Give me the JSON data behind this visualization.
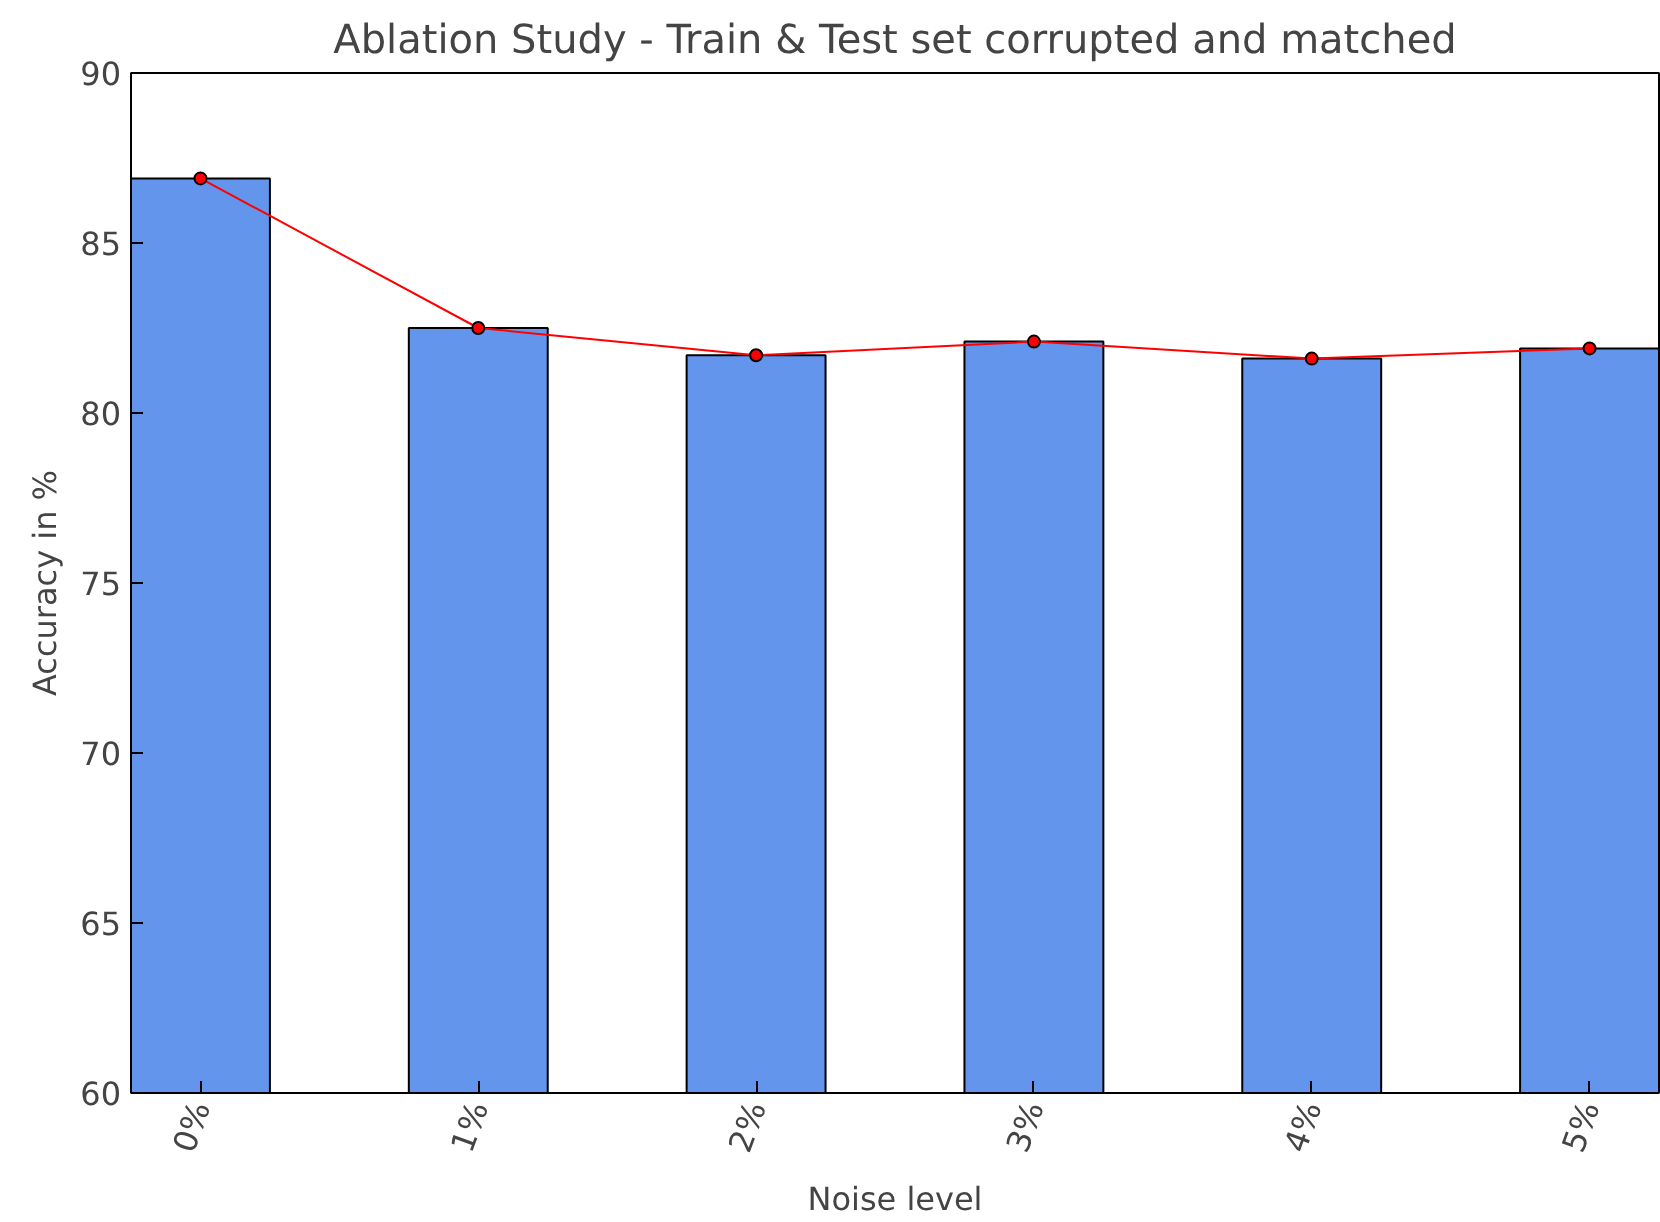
{
  "chart_data": {
    "type": "bar",
    "title": "Ablation Study - Train & Test set corrupted and matched",
    "xlabel": "Noise level",
    "ylabel": "Accuracy in %",
    "categories": [
      "0%",
      "1%",
      "2%",
      "3%",
      "4%",
      "5%"
    ],
    "series": [
      {
        "color": "#6495ed",
        "values": [
          86.9,
          82.5,
          81.7,
          82.1,
          81.6,
          81.9
        ]
      },
      {
        "type": "line",
        "color": "#ff0000",
        "marker": "circle",
        "values": [
          86.9,
          82.5,
          81.7,
          82.1,
          81.6,
          81.9
        ]
      }
    ],
    "ylim": [
      60,
      90
    ],
    "yticks": [
      60,
      65,
      70,
      75,
      80,
      85,
      90
    ],
    "grid": false
  }
}
